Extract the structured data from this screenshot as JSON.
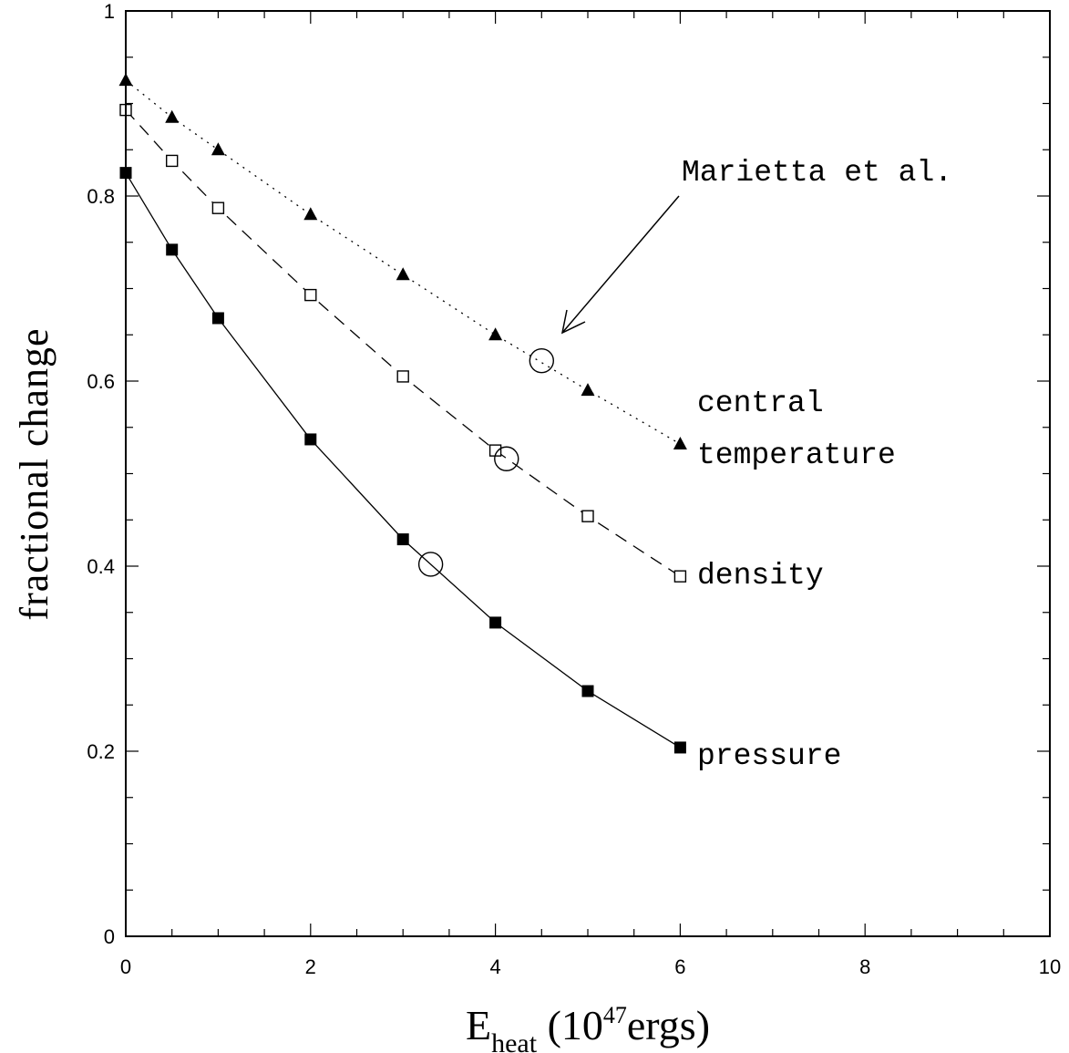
{
  "chart_data": {
    "type": "line",
    "title": "",
    "xlabel": {
      "main": "E",
      "sub": "heat",
      "rest": " (10",
      "sup": "47",
      "end": "ergs)"
    },
    "ylabel": "fractional change",
    "xlim": [
      0,
      10
    ],
    "ylim": [
      0,
      1
    ],
    "xticks": [
      0,
      2,
      4,
      6,
      8,
      10
    ],
    "xtick_labels": [
      "0",
      "2",
      "4",
      "6",
      "8",
      "10"
    ],
    "yticks": [
      0,
      0.2,
      0.4,
      0.6,
      0.8,
      1
    ],
    "ytick_labels": [
      "0",
      "0.2",
      "0.4",
      "0.6",
      "0.8",
      "1"
    ],
    "x_minor_step": 0.5,
    "y_minor_step": 0.05,
    "grid": false,
    "legend": "none (series labeled inline at right ends)",
    "series": [
      {
        "name": "central temperature",
        "marker": "filled-triangle",
        "line": "dotted",
        "x": [
          0,
          0.5,
          1,
          2,
          3,
          4,
          5,
          6
        ],
        "y": [
          0.925,
          0.885,
          0.85,
          0.78,
          0.715,
          0.65,
          0.59,
          0.532
        ]
      },
      {
        "name": "density",
        "marker": "open-square",
        "line": "dashed",
        "x": [
          0,
          0.5,
          1,
          2,
          3,
          4,
          5,
          6
        ],
        "y": [
          0.893,
          0.838,
          0.787,
          0.693,
          0.605,
          0.525,
          0.454,
          0.389
        ]
      },
      {
        "name": "pressure",
        "marker": "filled-square",
        "line": "solid",
        "x": [
          0,
          0.5,
          1,
          2,
          3,
          4,
          5,
          6
        ],
        "y": [
          0.825,
          0.742,
          0.668,
          0.537,
          0.429,
          0.339,
          0.265,
          0.204
        ]
      }
    ],
    "reference_points": {
      "name": "Marietta et al.",
      "marker": "open-circle",
      "x": [
        4.5,
        4.12,
        3.3
      ],
      "y": [
        0.622,
        0.516,
        0.402
      ]
    },
    "annotations": {
      "reference": "Marietta et al.",
      "temperature_line1": "central",
      "temperature_line2": "temperature",
      "density": "density",
      "pressure": "pressure"
    },
    "colors": {
      "ink": "#000000",
      "background": "#ffffff"
    }
  }
}
